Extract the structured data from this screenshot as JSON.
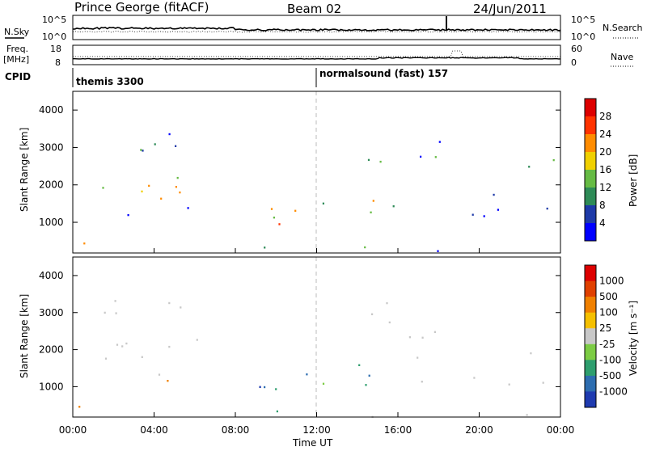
{
  "header": {
    "title": "Prince George (fitACF)",
    "beam": "Beam 02",
    "date": "24/Jun/2011"
  },
  "panels": {
    "noise": {
      "left_label": "N.Sky",
      "left_ticks": [
        "10^5",
        "10^0"
      ],
      "right_label": "N.Search",
      "right_ticks": [
        "10^5",
        "10^0"
      ]
    },
    "freq": {
      "left_label_1": "Freq.",
      "left_label_2": "[MHz]",
      "left_ticks": [
        "18",
        "8"
      ],
      "right_label": "Nave",
      "right_ticks": [
        "60",
        "0"
      ]
    },
    "cpid": {
      "label": "CPID",
      "programs": [
        "themis 3300",
        "normalsound (fast) 157"
      ],
      "program_change_time": "12:00"
    }
  },
  "chart_data": [
    {
      "type": "heatmap",
      "name": "power",
      "ylabel": "Slant Range [km]",
      "yticks": [
        "1000",
        "2000",
        "3000",
        "4000"
      ],
      "ylim": [
        180,
        4500
      ],
      "colorbar": {
        "label": "Power [dB]",
        "ticks": [
          "4",
          "8",
          "12",
          "16",
          "20",
          "24",
          "28"
        ],
        "colors": [
          "#0000ff",
          "#1e3aa8",
          "#2e8b57",
          "#66bb44",
          "#f0d000",
          "#ff8c00",
          "#ff3300",
          "#dd0000"
        ]
      }
    },
    {
      "type": "heatmap",
      "name": "velocity",
      "ylabel": "Slant Range [km]",
      "yticks": [
        "1000",
        "2000",
        "3000",
        "4000"
      ],
      "ylim": [
        180,
        4500
      ],
      "colorbar": {
        "label": "Velocity [m s⁻¹]",
        "ticks": [
          "1000",
          "500",
          "100",
          "25",
          "-25",
          "-100",
          "-500",
          "-1000"
        ],
        "colors": [
          "#1f3bb0",
          "#2d6db0",
          "#2e9e6e",
          "#7ccc44",
          "#c8c8c8",
          "#f5c000",
          "#f08000",
          "#e04000",
          "#dd0000"
        ]
      }
    }
  ],
  "xaxis": {
    "ticks": [
      "00:00",
      "04:00",
      "08:00",
      "12:00",
      "16:00",
      "20:00",
      "00:00"
    ],
    "label": "Time UT"
  }
}
